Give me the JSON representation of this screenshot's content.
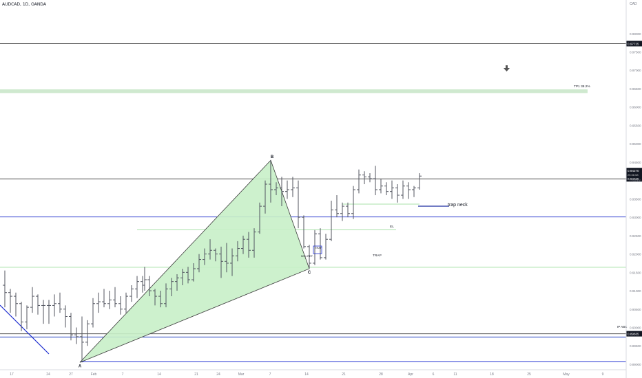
{
  "header": {
    "symbol": "AUDCAD, 1D, OANDA",
    "currency": "CAD",
    "gear": "⚙"
  },
  "chart_data": {
    "type": "ohlc",
    "title": "AUDCAD, 1D, OANDA",
    "ylim": [
      0.8885,
      0.9865
    ],
    "x_range": [
      0,
      932
    ],
    "price_ticks": [
      "0.98000",
      "0.97500",
      "0.97000",
      "0.96500",
      "0.96000",
      "0.95500",
      "0.95000",
      "0.94500",
      "0.94000",
      "0.93500",
      "0.93000",
      "0.92500",
      "0.92000",
      "0.91500",
      "0.91000",
      "0.90500",
      "0.90000",
      "0.89500",
      "0.89000"
    ],
    "x_ticks": [
      {
        "label": "17",
        "x": 17
      },
      {
        "label": "24",
        "x": 70
      },
      {
        "label": "27",
        "x": 103
      },
      {
        "label": "Feb",
        "x": 136
      },
      {
        "label": "7",
        "x": 178
      },
      {
        "label": "14",
        "x": 231
      },
      {
        "label": "21",
        "x": 285
      },
      {
        "label": "24",
        "x": 317
      },
      {
        "label": "Mar",
        "x": 350
      },
      {
        "label": "7",
        "x": 392
      },
      {
        "label": "14",
        "x": 445
      },
      {
        "label": "21",
        "x": 499
      },
      {
        "label": "28",
        "x": 553
      },
      {
        "label": "Apr",
        "x": 596
      },
      {
        "label": "6",
        "x": 629
      },
      {
        "label": "11",
        "x": 661
      },
      {
        "label": "18",
        "x": 714
      },
      {
        "label": "25",
        "x": 768
      },
      {
        "label": "May",
        "x": 822
      },
      {
        "label": "9",
        "x": 875
      }
    ],
    "bars": [
      {
        "x": 7,
        "o": 0.9115,
        "h": 0.9155,
        "l": 0.9055,
        "c": 0.9095
      },
      {
        "x": 15,
        "o": 0.9095,
        "h": 0.9105,
        "l": 0.904,
        "c": 0.9085
      },
      {
        "x": 23,
        "o": 0.9085,
        "h": 0.9095,
        "l": 0.903,
        "c": 0.9065
      },
      {
        "x": 31,
        "o": 0.9065,
        "h": 0.907,
        "l": 0.899,
        "c": 0.9015
      },
      {
        "x": 39,
        "o": 0.9015,
        "h": 0.906,
        "l": 0.8995,
        "c": 0.9055
      },
      {
        "x": 47,
        "o": 0.9055,
        "h": 0.911,
        "l": 0.904,
        "c": 0.9085
      },
      {
        "x": 55,
        "o": 0.9085,
        "h": 0.909,
        "l": 0.9035,
        "c": 0.906
      },
      {
        "x": 63,
        "o": 0.906,
        "h": 0.9075,
        "l": 0.901,
        "c": 0.906
      },
      {
        "x": 71,
        "o": 0.906,
        "h": 0.9075,
        "l": 0.901,
        "c": 0.906
      },
      {
        "x": 79,
        "o": 0.906,
        "h": 0.909,
        "l": 0.903,
        "c": 0.9065
      },
      {
        "x": 87,
        "o": 0.9065,
        "h": 0.9095,
        "l": 0.904,
        "c": 0.905
      },
      {
        "x": 95,
        "o": 0.905,
        "h": 0.906,
        "l": 0.9,
        "c": 0.903
      },
      {
        "x": 103,
        "o": 0.903,
        "h": 0.904,
        "l": 0.8965,
        "c": 0.898
      },
      {
        "x": 111,
        "o": 0.898,
        "h": 0.9,
        "l": 0.8955,
        "c": 0.8975
      },
      {
        "x": 119,
        "o": 0.8975,
        "h": 0.903,
        "l": 0.8905,
        "c": 0.896
      },
      {
        "x": 127,
        "o": 0.896,
        "h": 0.902,
        "l": 0.895,
        "c": 0.901
      },
      {
        "x": 135,
        "o": 0.901,
        "h": 0.908,
        "l": 0.9,
        "c": 0.9065
      },
      {
        "x": 143,
        "o": 0.9065,
        "h": 0.9095,
        "l": 0.904,
        "c": 0.907
      },
      {
        "x": 151,
        "o": 0.907,
        "h": 0.9105,
        "l": 0.9055,
        "c": 0.9065
      },
      {
        "x": 159,
        "o": 0.9065,
        "h": 0.91,
        "l": 0.905,
        "c": 0.9075
      },
      {
        "x": 167,
        "o": 0.9075,
        "h": 0.911,
        "l": 0.9055,
        "c": 0.9065
      },
      {
        "x": 175,
        "o": 0.9065,
        "h": 0.9085,
        "l": 0.9035,
        "c": 0.905
      },
      {
        "x": 183,
        "o": 0.905,
        "h": 0.9095,
        "l": 0.904,
        "c": 0.9085
      },
      {
        "x": 191,
        "o": 0.9085,
        "h": 0.9115,
        "l": 0.907,
        "c": 0.9105
      },
      {
        "x": 199,
        "o": 0.9105,
        "h": 0.914,
        "l": 0.908,
        "c": 0.9125
      },
      {
        "x": 207,
        "o": 0.9125,
        "h": 0.914,
        "l": 0.9095,
        "c": 0.9115
      },
      {
        "x": 210,
        "o": 0.9115,
        "h": 0.9165,
        "l": 0.91,
        "c": 0.913
      },
      {
        "x": 217,
        "o": 0.913,
        "h": 0.914,
        "l": 0.9085,
        "c": 0.91
      },
      {
        "x": 225,
        "o": 0.91,
        "h": 0.9105,
        "l": 0.906,
        "c": 0.9085
      },
      {
        "x": 233,
        "o": 0.9085,
        "h": 0.91,
        "l": 0.9055,
        "c": 0.9065
      },
      {
        "x": 241,
        "o": 0.9065,
        "h": 0.912,
        "l": 0.9055,
        "c": 0.9105
      },
      {
        "x": 249,
        "o": 0.9105,
        "h": 0.9135,
        "l": 0.9085,
        "c": 0.9125
      },
      {
        "x": 257,
        "o": 0.9125,
        "h": 0.9145,
        "l": 0.91,
        "c": 0.9135
      },
      {
        "x": 265,
        "o": 0.9135,
        "h": 0.916,
        "l": 0.9115,
        "c": 0.915
      },
      {
        "x": 273,
        "o": 0.915,
        "h": 0.9165,
        "l": 0.912,
        "c": 0.913
      },
      {
        "x": 281,
        "o": 0.913,
        "h": 0.9175,
        "l": 0.9125,
        "c": 0.916
      },
      {
        "x": 289,
        "o": 0.916,
        "h": 0.92,
        "l": 0.915,
        "c": 0.9185
      },
      {
        "x": 297,
        "o": 0.9185,
        "h": 0.9215,
        "l": 0.917,
        "c": 0.92
      },
      {
        "x": 305,
        "o": 0.92,
        "h": 0.924,
        "l": 0.9185,
        "c": 0.921
      },
      {
        "x": 313,
        "o": 0.921,
        "h": 0.9215,
        "l": 0.918,
        "c": 0.92
      },
      {
        "x": 321,
        "o": 0.92,
        "h": 0.922,
        "l": 0.9135,
        "c": 0.918
      },
      {
        "x": 329,
        "o": 0.918,
        "h": 0.923,
        "l": 0.915,
        "c": 0.9175
      },
      {
        "x": 337,
        "o": 0.9175,
        "h": 0.9215,
        "l": 0.914,
        "c": 0.9195
      },
      {
        "x": 345,
        "o": 0.9195,
        "h": 0.9235,
        "l": 0.918,
        "c": 0.9215
      },
      {
        "x": 353,
        "o": 0.9215,
        "h": 0.925,
        "l": 0.92,
        "c": 0.924
      },
      {
        "x": 361,
        "o": 0.924,
        "h": 0.926,
        "l": 0.919,
        "c": 0.921
      },
      {
        "x": 369,
        "o": 0.921,
        "h": 0.927,
        "l": 0.919,
        "c": 0.926
      },
      {
        "x": 377,
        "o": 0.926,
        "h": 0.934,
        "l": 0.9255,
        "c": 0.933
      },
      {
        "x": 385,
        "o": 0.933,
        "h": 0.94,
        "l": 0.931,
        "c": 0.939
      },
      {
        "x": 393,
        "o": 0.939,
        "h": 0.9455,
        "l": 0.934,
        "c": 0.9375
      },
      {
        "x": 401,
        "o": 0.9375,
        "h": 0.9395,
        "l": 0.936,
        "c": 0.938
      },
      {
        "x": 409,
        "o": 0.938,
        "h": 0.941,
        "l": 0.933,
        "c": 0.937
      },
      {
        "x": 417,
        "o": 0.937,
        "h": 0.94,
        "l": 0.935,
        "c": 0.9375
      },
      {
        "x": 425,
        "o": 0.9375,
        "h": 0.941,
        "l": 0.9355,
        "c": 0.938
      },
      {
        "x": 433,
        "o": 0.938,
        "h": 0.94,
        "l": 0.927,
        "c": 0.93
      },
      {
        "x": 441,
        "o": 0.93,
        "h": 0.9305,
        "l": 0.9215,
        "c": 0.922
      },
      {
        "x": 449,
        "o": 0.922,
        "h": 0.9225,
        "l": 0.916,
        "c": 0.9175
      },
      {
        "x": 457,
        "o": 0.9175,
        "h": 0.9265,
        "l": 0.917,
        "c": 0.9255
      },
      {
        "x": 465,
        "o": 0.9255,
        "h": 0.927,
        "l": 0.9185,
        "c": 0.919
      },
      {
        "x": 473,
        "o": 0.919,
        "h": 0.9255,
        "l": 0.9185,
        "c": 0.924
      },
      {
        "x": 481,
        "o": 0.924,
        "h": 0.9345,
        "l": 0.9235,
        "c": 0.932
      },
      {
        "x": 489,
        "o": 0.932,
        "h": 0.936,
        "l": 0.93,
        "c": 0.931
      },
      {
        "x": 497,
        "o": 0.931,
        "h": 0.934,
        "l": 0.929,
        "c": 0.933
      },
      {
        "x": 505,
        "o": 0.933,
        "h": 0.934,
        "l": 0.93,
        "c": 0.931
      },
      {
        "x": 513,
        "o": 0.931,
        "h": 0.9385,
        "l": 0.9295,
        "c": 0.9375
      },
      {
        "x": 521,
        "o": 0.9375,
        "h": 0.943,
        "l": 0.9365,
        "c": 0.9415
      },
      {
        "x": 529,
        "o": 0.9415,
        "h": 0.9425,
        "l": 0.939,
        "c": 0.941
      },
      {
        "x": 537,
        "o": 0.941,
        "h": 0.942,
        "l": 0.9395,
        "c": 0.9405
      },
      {
        "x": 545,
        "o": 0.9405,
        "h": 0.944,
        "l": 0.936,
        "c": 0.9375
      },
      {
        "x": 553,
        "o": 0.9375,
        "h": 0.9405,
        "l": 0.9365,
        "c": 0.9385
      },
      {
        "x": 561,
        "o": 0.9385,
        "h": 0.9395,
        "l": 0.936,
        "c": 0.937
      },
      {
        "x": 569,
        "o": 0.937,
        "h": 0.94,
        "l": 0.935,
        "c": 0.938
      },
      {
        "x": 577,
        "o": 0.938,
        "h": 0.939,
        "l": 0.934,
        "c": 0.936
      },
      {
        "x": 585,
        "o": 0.936,
        "h": 0.94,
        "l": 0.935,
        "c": 0.9385
      },
      {
        "x": 593,
        "o": 0.9385,
        "h": 0.9395,
        "l": 0.935,
        "c": 0.9375
      },
      {
        "x": 601,
        "o": 0.9375,
        "h": 0.9385,
        "l": 0.9355,
        "c": 0.938
      },
      {
        "x": 609,
        "o": 0.938,
        "h": 0.942,
        "l": 0.9375,
        "c": 0.9412
      }
    ],
    "pattern": {
      "points": [
        {
          "label": "A",
          "x": 116,
          "y": 0.8905
        },
        {
          "label": "B",
          "x": 393,
          "y": 0.9455
        },
        {
          "label": "C",
          "x": 449,
          "y": 0.916
        }
      ],
      "fill": "#c8f0c8",
      "stroke": "#3a3a3a"
    },
    "hlines": [
      {
        "name": "level-black-top",
        "y": 0.97725,
        "color": "#555555",
        "label": "0.97725"
      },
      {
        "name": "level-black-current",
        "y": 0.94045,
        "color": "#555555",
        "label": "0.94045"
      },
      {
        "name": "level-blue-trap-neck",
        "y": 0.9301,
        "color": "#3040d0"
      },
      {
        "name": "level-green-trap",
        "y": 0.9164,
        "color": "#a8e0a8"
      },
      {
        "name": "level-black-ipabc",
        "y": 0.8983,
        "color": "#555555",
        "label": "0.89835"
      },
      {
        "name": "level-blue-ipabc",
        "y": 0.8974,
        "color": "#1f3fc0"
      },
      {
        "name": "level-blue-a",
        "y": 0.89065,
        "color": "#2030d0"
      }
    ],
    "tp1_zone": {
      "y1": 0.9648,
      "y2": 0.9638,
      "x1": 0,
      "x2": 853,
      "color": "#cfe9cf"
    },
    "labels": [
      {
        "name": "tp1-label",
        "text": "TP1 38.2%"
      },
      {
        "name": "trap-neck-label",
        "text": "trap neck"
      },
      {
        "name": "el-label",
        "text": "EL"
      },
      {
        "name": "trap-label",
        "text": "TRAP"
      },
      {
        "name": "trap-small-label",
        "text": "TRAP"
      },
      {
        "name": "pct-label",
        "text": "50% RET."
      },
      {
        "name": "ip-abc-label",
        "text": "IP ABC"
      }
    ],
    "price_tags": [
      {
        "text": "0.94270",
        "y": 0.9427,
        "sub": "25:36:58"
      },
      {
        "text": "0.94045",
        "y": 0.94045
      }
    ]
  }
}
